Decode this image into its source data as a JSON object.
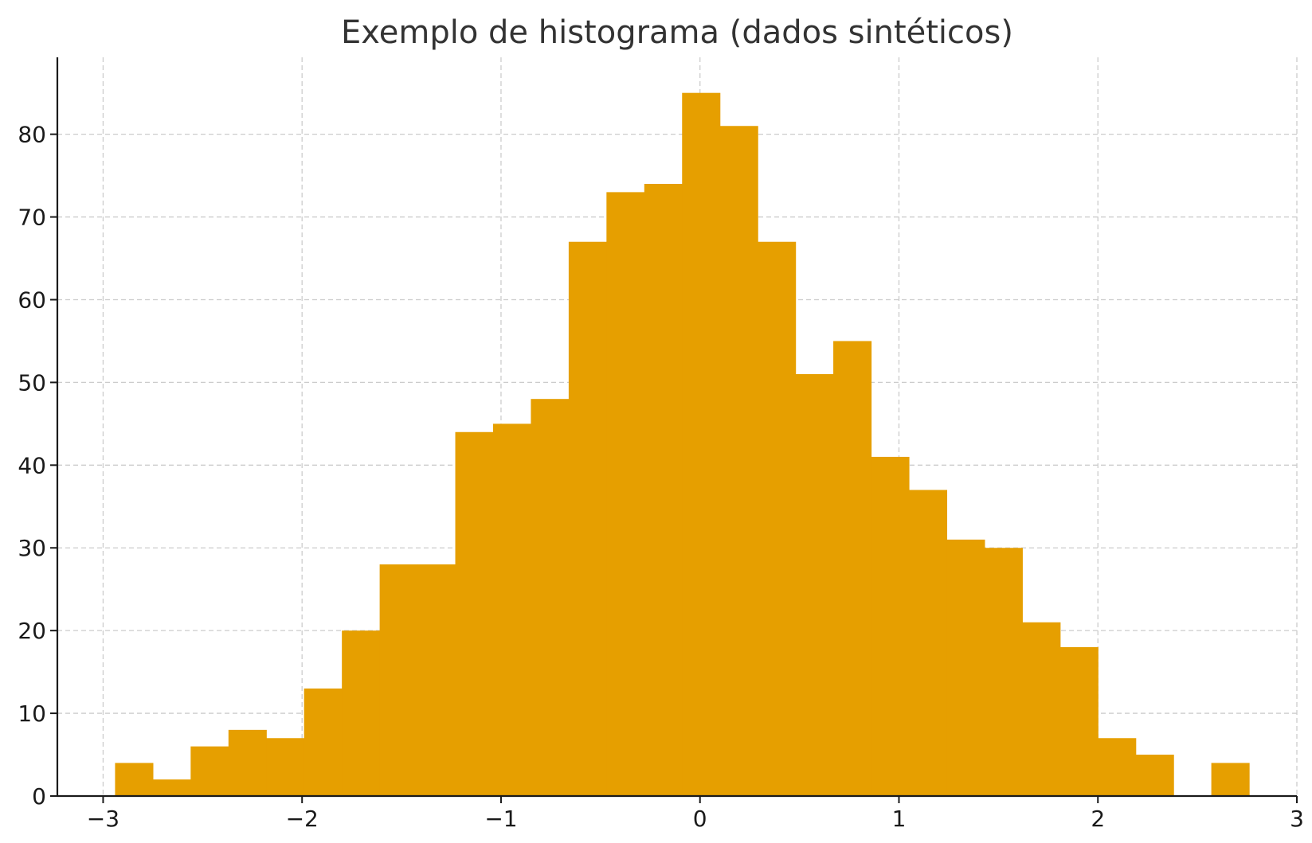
{
  "chart_data": {
    "type": "bar",
    "title": "Exemplo de histograma (dados sintéticos)",
    "xlabel": "",
    "ylabel": "",
    "xlim": [
      -3.23,
      3.0
    ],
    "ylim": [
      0,
      89.3
    ],
    "grid": true,
    "bar_color": "#E69F00",
    "x_ticks": [
      {
        "value": -3,
        "label": "−3"
      },
      {
        "value": -2,
        "label": "−2"
      },
      {
        "value": -1,
        "label": "−1"
      },
      {
        "value": 0,
        "label": "0"
      },
      {
        "value": 1,
        "label": "1"
      },
      {
        "value": 2,
        "label": "2"
      },
      {
        "value": 3,
        "label": "3"
      }
    ],
    "y_ticks": [
      {
        "value": 0,
        "label": "0"
      },
      {
        "value": 10,
        "label": "10"
      },
      {
        "value": 20,
        "label": "20"
      },
      {
        "value": 30,
        "label": "30"
      },
      {
        "value": 40,
        "label": "40"
      },
      {
        "value": 50,
        "label": "50"
      },
      {
        "value": 60,
        "label": "60"
      },
      {
        "value": 70,
        "label": "70"
      },
      {
        "value": 80,
        "label": "80"
      }
    ],
    "bin_start": -2.94,
    "bin_width": 0.19,
    "counts": [
      4,
      2,
      6,
      8,
      7,
      13,
      20,
      28,
      28,
      44,
      45,
      48,
      67,
      73,
      74,
      85,
      81,
      67,
      51,
      55,
      41,
      37,
      31,
      30,
      21,
      18,
      7,
      5,
      0,
      4
    ]
  }
}
